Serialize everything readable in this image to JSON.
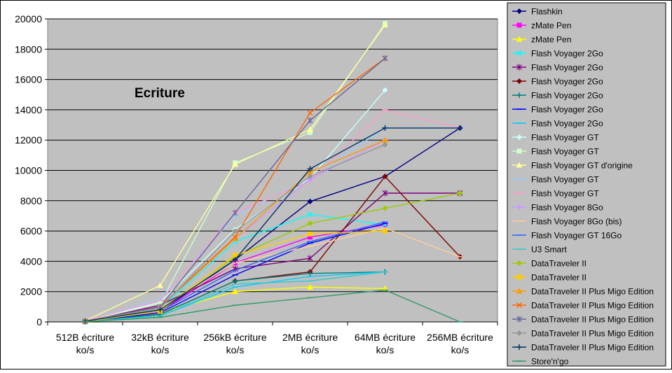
{
  "chart_data": {
    "type": "line",
    "title": "Ecriture",
    "categories": [
      "512B écriture ko/s",
      "32kB écriture ko/s",
      "256kB écriture ko/s",
      "2MB écriture ko/s",
      "64MB écriture ko/s",
      "256MB écriture ko/s"
    ],
    "ylim": [
      0,
      20000
    ],
    "yticks": [
      0,
      2000,
      4000,
      6000,
      8000,
      10000,
      12000,
      14000,
      16000,
      18000,
      20000
    ],
    "grid": true,
    "legend_position": "right",
    "plot_background": "#c0c0c0",
    "series": [
      {
        "name": "Flashkin",
        "color": "#000080",
        "marker": "diamond",
        "values": [
          50,
          700,
          4100,
          7950,
          9600,
          12800
        ]
      },
      {
        "name": "zMate Pen",
        "color": "#ff00ff",
        "marker": "square",
        "values": [
          40,
          650,
          3900,
          5600,
          6400,
          null
        ]
      },
      {
        "name": "zMate Pen",
        "color": "#ffff00",
        "marker": "triangle",
        "values": [
          40,
          600,
          2000,
          2300,
          2200,
          null
        ]
      },
      {
        "name": "Flash Voyager 2Go",
        "color": "#00ffff",
        "marker": "x",
        "values": [
          30,
          900,
          5300,
          7100,
          6400,
          null
        ]
      },
      {
        "name": "Flash Voyager 2Go",
        "color": "#800080",
        "marker": "star",
        "values": [
          30,
          1100,
          3500,
          4200,
          8500,
          8500
        ]
      },
      {
        "name": "Flash Voyager 2Go",
        "color": "#800000",
        "marker": "diamond",
        "values": [
          30,
          500,
          2700,
          3300,
          9600,
          4300
        ]
      },
      {
        "name": "Flash Voyager 2Go",
        "color": "#008080",
        "marker": "plus",
        "values": [
          30,
          500,
          2700,
          3200,
          3300,
          null
        ]
      },
      {
        "name": "Flash Voyager 2Go",
        "color": "#0000ff",
        "marker": "dash",
        "values": [
          30,
          600,
          3100,
          5200,
          6500,
          null
        ]
      },
      {
        "name": "Flash Voyager 2Go",
        "color": "#00ccff",
        "marker": "dash",
        "values": [
          30,
          400,
          2300,
          3000,
          3300,
          null
        ]
      },
      {
        "name": "Flash Voyager GT",
        "color": "#ccffff",
        "marker": "diamond",
        "values": [
          80,
          1300,
          6100,
          9500,
          15300,
          null
        ]
      },
      {
        "name": "Flash Voyager GT",
        "color": "#ccffcc",
        "marker": "square",
        "values": [
          80,
          1200,
          10500,
          12500,
          19700,
          null
        ]
      },
      {
        "name": "Flash Voyager GT d'origine",
        "color": "#ffff99",
        "marker": "triangle",
        "values": [
          80,
          2400,
          10400,
          12700,
          19600,
          null
        ]
      },
      {
        "name": "Flash Voyager GT",
        "color": "#99ccff",
        "marker": "dash",
        "values": [
          80,
          1500,
          7000,
          9500,
          12800,
          null
        ]
      },
      {
        "name": "Flash Voyager GT",
        "color": "#ff99cc",
        "marker": "dash",
        "values": [
          80,
          1400,
          7200,
          9300,
          14000,
          12800
        ]
      },
      {
        "name": "Flash Voyager 8Go",
        "color": "#cc99ff",
        "marker": "diamond",
        "values": [
          60,
          1000,
          5500,
          9400,
          12000,
          null
        ]
      },
      {
        "name": "Flash Voyager 8Go (bis)",
        "color": "#ffcc99",
        "marker": "dash",
        "values": [
          60,
          900,
          3900,
          5000,
          6200,
          4300
        ]
      },
      {
        "name": "Flash Voyager GT 16Go",
        "color": "#3366ff",
        "marker": "dash",
        "values": [
          40,
          700,
          3400,
          5300,
          6600,
          null
        ]
      },
      {
        "name": "U3 Smart",
        "color": "#33cccc",
        "marker": "dash",
        "values": [
          30,
          400,
          2500,
          2700,
          3300,
          null
        ]
      },
      {
        "name": "DataTraveler II",
        "color": "#99cc00",
        "marker": "diamond",
        "values": [
          30,
          800,
          4300,
          6500,
          7500,
          8500
        ]
      },
      {
        "name": "DataTraveler II",
        "color": "#ffcc00",
        "marker": "square",
        "values": [
          30,
          700,
          4400,
          5800,
          6000,
          null
        ]
      },
      {
        "name": "DataTraveler II Plus Migo Edition",
        "color": "#ff9900",
        "marker": "triangle",
        "values": [
          50,
          1000,
          5500,
          9900,
          12000,
          null
        ]
      },
      {
        "name": "DataTraveler II Plus Migo Edition",
        "color": "#ff6600",
        "marker": "x",
        "values": [
          50,
          1000,
          5600,
          13800,
          17400,
          null
        ]
      },
      {
        "name": "DataTraveler II Plus Migo Edition",
        "color": "#666699",
        "marker": "star",
        "values": [
          50,
          1000,
          7200,
          13300,
          17400,
          null
        ]
      },
      {
        "name": "DataTraveler II Plus Migo Edition",
        "color": "#969696",
        "marker": "diamond",
        "values": [
          50,
          900,
          6000,
          9600,
          11700,
          null
        ]
      },
      {
        "name": "DataTraveler II Plus Migo Edition",
        "color": "#003366",
        "marker": "plus",
        "values": [
          50,
          800,
          4100,
          10100,
          12800,
          12800
        ]
      },
      {
        "name": "Store'n'go",
        "color": "#339966",
        "marker": "dash",
        "values": [
          20,
          300,
          1100,
          1600,
          2100,
          0
        ]
      }
    ]
  }
}
